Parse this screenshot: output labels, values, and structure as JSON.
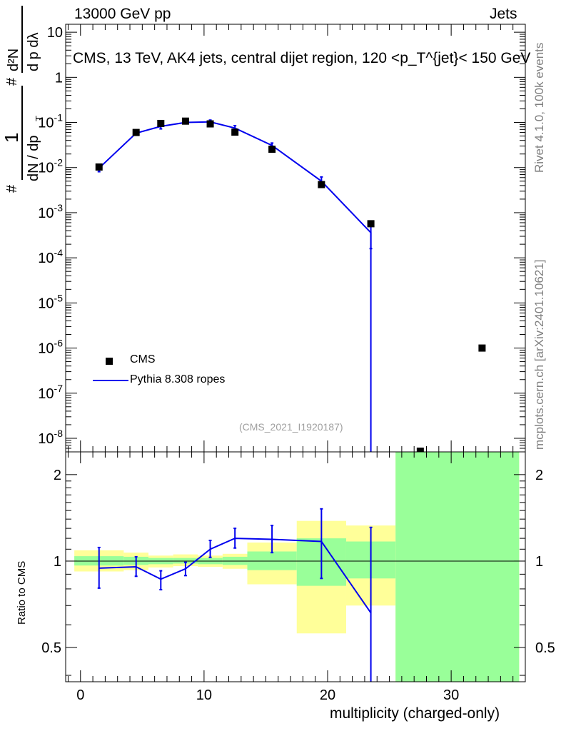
{
  "header": {
    "left": "13000 GeV pp",
    "right": "Jets"
  },
  "side_labels": {
    "version": "Rivet 4.1.0,  100k events",
    "site": "mcplots.cern.ch [arXiv:2401.10621]"
  },
  "chart_data": [
    {
      "type": "scatter",
      "title": "CMS, 13 TeV, AK4 jets, central dijet region, 120 <p_T^{jet}< 150 GeV",
      "ylabel": "1/(dN/dp_T) · d²N/(dp_T dλ)",
      "yscale": "log",
      "xlim": [
        -1.2,
        36
      ],
      "ylim": [
        5e-09,
        15
      ],
      "yticks": [
        "10^-8",
        "10^-7",
        "10^-6",
        "10^-5",
        "10^-4",
        "10^-3",
        "10^-2",
        "10^-1",
        "1",
        "10"
      ],
      "legend_position": "bottom-left",
      "footnote": "(CMS_2021_I1920187)",
      "series": [
        {
          "name": "CMS",
          "style": "markers",
          "color": "#000000",
          "x": [
            1.5,
            4.5,
            6.5,
            8.5,
            10.5,
            12.5,
            15.5,
            19.5,
            23.5,
            27.5,
            32.5
          ],
          "y": [
            0.0103,
            0.06,
            0.095,
            0.107,
            0.093,
            0.061,
            0.0255,
            0.0042,
            0.00057,
            4.5e-09,
            1e-06
          ]
        },
        {
          "name": "Pythia 8.308 ropes",
          "style": "line",
          "color": "#0000ee",
          "x": [
            1.5,
            4.5,
            6.5,
            8.5,
            10.5,
            12.5,
            15.5,
            19.5,
            23.5
          ],
          "y": [
            0.0097,
            0.058,
            0.082,
            0.1,
            0.103,
            0.075,
            0.031,
            0.005,
            0.00036
          ],
          "yerr": [
            0.0016,
            0.005,
            0.01,
            0.007,
            0.01,
            0.01,
            0.004,
            0.0012,
            0.0002
          ],
          "drop_to_zero_at": 23.5
        }
      ]
    },
    {
      "type": "line",
      "ylabel": "Ratio to CMS",
      "xlabel": "multiplicity (charged-only)",
      "xlim": [
        -1.2,
        36
      ],
      "ylim": [
        0.38,
        2.4
      ],
      "yscale": "log",
      "xticks": [
        0,
        10,
        20,
        30
      ],
      "yticks": [
        0.5,
        1,
        2
      ],
      "reference_line": 1,
      "bands": [
        {
          "x0": -0.5,
          "x1": 3.5,
          "outer": [
            0.92,
            1.09
          ],
          "inner": [
            0.965,
            1.04
          ]
        },
        {
          "x0": 3.5,
          "x1": 5.5,
          "outer": [
            0.93,
            1.07
          ],
          "inner": [
            0.97,
            1.035
          ]
        },
        {
          "x0": 5.5,
          "x1": 7.5,
          "outer": [
            0.95,
            1.045
          ],
          "inner": [
            0.975,
            1.025
          ]
        },
        {
          "x0": 7.5,
          "x1": 9.5,
          "outer": [
            0.96,
            1.055
          ],
          "inner": [
            0.98,
            1.025
          ]
        },
        {
          "x0": 9.5,
          "x1": 11.5,
          "outer": [
            0.955,
            1.045
          ],
          "inner": [
            0.975,
            1.025
          ]
        },
        {
          "x0": 11.5,
          "x1": 13.5,
          "outer": [
            0.94,
            1.06
          ],
          "inner": [
            0.97,
            1.035
          ]
        },
        {
          "x0": 13.5,
          "x1": 17.5,
          "outer": [
            0.83,
            1.16
          ],
          "inner": [
            0.93,
            1.08
          ]
        },
        {
          "x0": 17.5,
          "x1": 21.5,
          "outer": [
            0.56,
            1.38
          ],
          "inner": [
            0.82,
            1.2
          ]
        },
        {
          "x0": 21.5,
          "x1": 25.5,
          "outer": [
            0.7,
            1.33
          ],
          "inner": [
            0.87,
            1.17
          ]
        },
        {
          "x0": 25.5,
          "x1": 35.5,
          "outer": [
            0.3,
            3.0
          ],
          "inner": [
            0.3,
            3.0
          ]
        }
      ],
      "series": [
        {
          "name": "Pythia 8.308 ropes",
          "color": "#0000ee",
          "x": [
            1.5,
            4.5,
            6.5,
            8.5,
            10.5,
            12.5,
            15.5,
            19.5,
            23.5
          ],
          "y": [
            0.945,
            0.955,
            0.865,
            0.94,
            1.1,
            1.2,
            1.19,
            1.17,
            0.66
          ],
          "yerr_lo": [
            0.14,
            0.07,
            0.07,
            0.05,
            0.07,
            0.09,
            0.12,
            0.3,
            0.35
          ],
          "yerr_hi": [
            0.17,
            0.08,
            0.06,
            0.05,
            0.08,
            0.1,
            0.14,
            0.35,
            0.65
          ]
        }
      ]
    }
  ]
}
